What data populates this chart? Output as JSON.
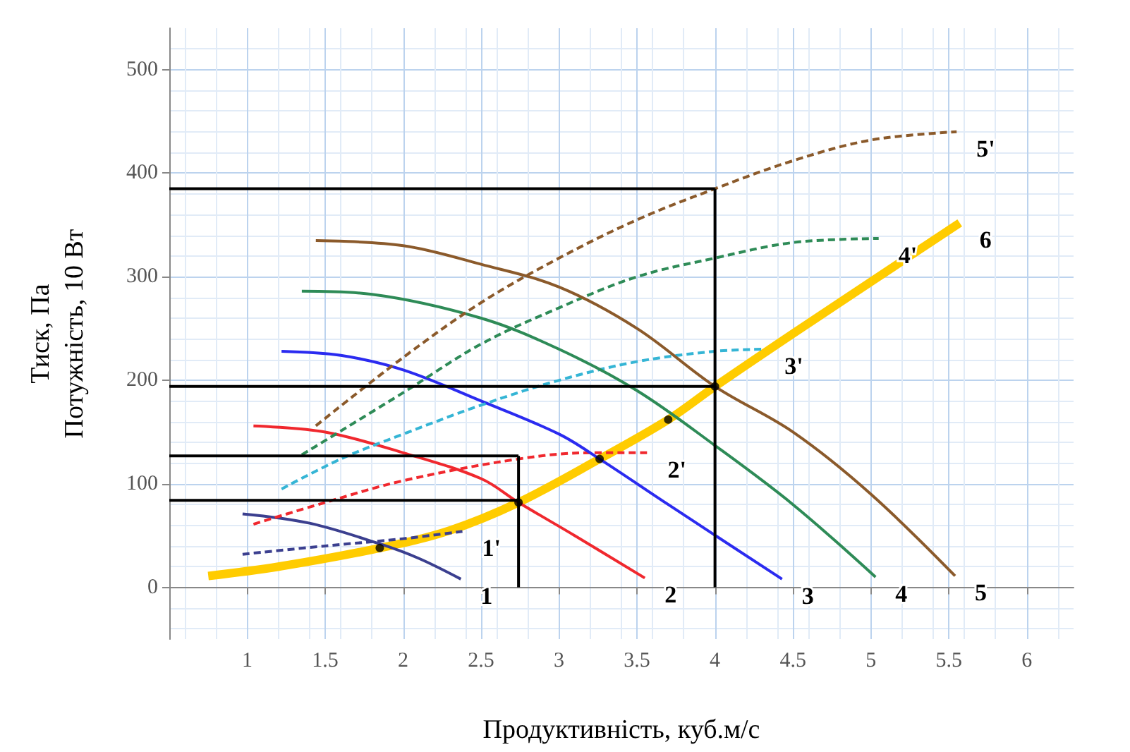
{
  "chart_data": {
    "type": "line",
    "xlabel": "Продуктивність, куб.м/с",
    "ylabel": "Тиск, Па\nПотужність, 10 Вт",
    "xlim": [
      0.5,
      6.3
    ],
    "ylim": [
      -50,
      540
    ],
    "xticks": [
      1,
      1.5,
      2,
      2.5,
      3,
      3.5,
      4,
      4.5,
      5,
      5.5,
      6
    ],
    "yticks": [
      0,
      100,
      200,
      300,
      400,
      500
    ],
    "grid": true,
    "series": [
      {
        "name": "1",
        "color": "#3b3f8f",
        "line_style": "solid",
        "x": [
          0.97,
          1.4,
          1.85,
          2.1,
          2.37
        ],
        "values": [
          71,
          62,
          42,
          28,
          8
        ]
      },
      {
        "name": "1'",
        "color": "#3b3f8f",
        "line_style": "dashed",
        "x": [
          0.97,
          1.5,
          2,
          2.38
        ],
        "values": [
          32,
          40,
          47,
          54
        ]
      },
      {
        "name": "2",
        "color": "#f0282e",
        "line_style": "solid",
        "x": [
          1.04,
          1.5,
          2,
          2.5,
          2.74,
          3.1,
          3.55
        ],
        "values": [
          156,
          150,
          130,
          105,
          82,
          50,
          9
        ]
      },
      {
        "name": "2'",
        "color": "#f0282e",
        "line_style": "dashed",
        "x": [
          1.04,
          1.5,
          2,
          2.74,
          3.2,
          3.57
        ],
        "values": [
          61,
          82,
          103,
          124,
          130,
          130
        ]
      },
      {
        "name": "3",
        "color": "#2b2bf0",
        "line_style": "solid",
        "x": [
          1.22,
          1.6,
          2,
          2.5,
          3,
          3.26,
          3.7,
          4.43
        ],
        "values": [
          228,
          224,
          210,
          180,
          148,
          124,
          80,
          8
        ]
      },
      {
        "name": "3'",
        "color": "#35b5d5",
        "line_style": "dashed",
        "x": [
          1.22,
          1.6,
          2,
          2.5,
          3,
          3.5,
          4,
          4.32
        ],
        "values": [
          95,
          124,
          148,
          176,
          200,
          218,
          228,
          230
        ]
      },
      {
        "name": "4",
        "color": "#2e8b57",
        "line_style": "solid",
        "x": [
          1.35,
          1.8,
          2.5,
          3,
          3.5,
          4,
          4.5,
          5.03
        ],
        "values": [
          286,
          283,
          260,
          230,
          190,
          137,
          80,
          10
        ]
      },
      {
        "name": "4'",
        "color": "#2e8b57",
        "line_style": "dashed",
        "x": [
          1.35,
          2,
          2.5,
          3,
          3.5,
          4,
          4.5,
          5.05
        ],
        "values": [
          128,
          188,
          235,
          270,
          300,
          318,
          333,
          337
        ]
      },
      {
        "name": "5",
        "color": "#8b5a2b",
        "line_style": "solid",
        "x": [
          1.44,
          2,
          2.5,
          3,
          3.5,
          4,
          4.5,
          5,
          5.54
        ],
        "values": [
          335,
          330,
          312,
          290,
          250,
          194,
          150,
          90,
          11
        ]
      },
      {
        "name": "5'",
        "color": "#8b5a2b",
        "line_style": "dashed",
        "x": [
          1.44,
          2,
          2.5,
          3,
          3.5,
          4,
          4.5,
          5,
          5.55
        ],
        "values": [
          156,
          222,
          275,
          318,
          355,
          385,
          412,
          432,
          440
        ]
      },
      {
        "name": "6",
        "color": "#ffcc00",
        "line_style": "solid",
        "x": [
          0.75,
          1.2,
          1.85,
          2.3,
          2.74,
          3.26,
          3.7,
          4,
          4.5,
          5,
          5.57
        ],
        "values": [
          11,
          20,
          38,
          55,
          82,
          124,
          162,
          194,
          245,
          295,
          352
        ]
      },
      {
        "color": "#000000",
        "line_style": "solid",
        "x": [
          0.5,
          4
        ],
        "values": [
          385,
          385
        ]
      },
      {
        "color": "#000000",
        "line_style": "solid",
        "x": [
          4,
          4
        ],
        "values": [
          0,
          385
        ]
      },
      {
        "color": "#000000",
        "line_style": "solid",
        "x": [
          0.5,
          4
        ],
        "values": [
          194,
          194
        ]
      },
      {
        "color": "#000000",
        "line_style": "solid",
        "x": [
          0.5,
          2.74
        ],
        "values": [
          127,
          127
        ]
      },
      {
        "color": "#000000",
        "line_style": "solid",
        "x": [
          0.5,
          2.74
        ],
        "values": [
          84,
          84
        ]
      },
      {
        "color": "#000000",
        "line_style": "solid",
        "x": [
          2.74,
          2.74
        ],
        "values": [
          0,
          127
        ]
      },
      {
        "type": "scatter",
        "color": "#000000",
        "marker": "circle",
        "x": [
          1.85,
          2.74,
          3.26,
          3.7,
          4
        ],
        "values": [
          38,
          82,
          124,
          162,
          194
        ]
      }
    ]
  }
}
